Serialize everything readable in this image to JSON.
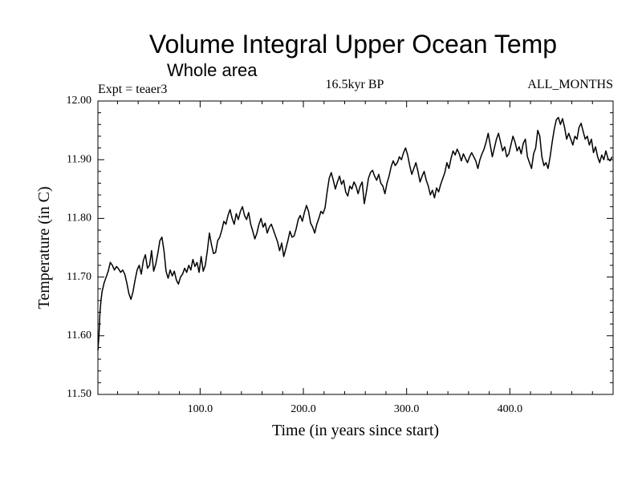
{
  "chart_data": {
    "type": "line",
    "title": "Volume Integral Upper Ocean Temp",
    "subtitle": "Whole area",
    "expt_label": "Expt = teaer3",
    "period_label": "16.5kyr BP",
    "months_label": "ALL_MONTHS",
    "xlabel": "Time (in years since start)",
    "ylabel": "Temperature (in C)",
    "xlim": [
      1,
      500
    ],
    "ylim": [
      11.5,
      12.0
    ],
    "x_ticks": [
      100,
      200,
      300,
      400
    ],
    "x_tick_labels": [
      "100.0",
      "200.0",
      "300.0",
      "400.0"
    ],
    "y_ticks": [
      11.5,
      11.6,
      11.7,
      11.8,
      11.9,
      12.0
    ],
    "y_tick_labels": [
      "11.50",
      "11.60",
      "11.70",
      "11.80",
      "11.90",
      "12.00"
    ],
    "grid": false,
    "series": [
      {
        "name": "Volume integral upper ocean temperature",
        "color": "#000000",
        "points": [
          [
            1,
            11.575
          ],
          [
            2,
            11.6
          ],
          [
            3,
            11.64
          ],
          [
            4,
            11.66
          ],
          [
            5,
            11.675
          ],
          [
            7,
            11.69
          ],
          [
            9,
            11.7
          ],
          [
            11,
            11.71
          ],
          [
            13,
            11.725
          ],
          [
            15,
            11.72
          ],
          [
            17,
            11.712
          ],
          [
            19,
            11.718
          ],
          [
            21,
            11.714
          ],
          [
            23,
            11.708
          ],
          [
            25,
            11.712
          ],
          [
            27,
            11.705
          ],
          [
            29,
            11.69
          ],
          [
            31,
            11.672
          ],
          [
            33,
            11.662
          ],
          [
            35,
            11.675
          ],
          [
            37,
            11.695
          ],
          [
            39,
            11.712
          ],
          [
            41,
            11.72
          ],
          [
            43,
            11.705
          ],
          [
            45,
            11.728
          ],
          [
            47,
            11.738
          ],
          [
            49,
            11.715
          ],
          [
            51,
            11.72
          ],
          [
            53,
            11.745
          ],
          [
            55,
            11.71
          ],
          [
            57,
            11.722
          ],
          [
            59,
            11.74
          ],
          [
            61,
            11.762
          ],
          [
            63,
            11.768
          ],
          [
            65,
            11.745
          ],
          [
            67,
            11.71
          ],
          [
            69,
            11.698
          ],
          [
            71,
            11.712
          ],
          [
            73,
            11.702
          ],
          [
            75,
            11.71
          ],
          [
            77,
            11.695
          ],
          [
            79,
            11.688
          ],
          [
            81,
            11.7
          ],
          [
            83,
            11.705
          ],
          [
            85,
            11.715
          ],
          [
            87,
            11.708
          ],
          [
            89,
            11.72
          ],
          [
            91,
            11.712
          ],
          [
            93,
            11.73
          ],
          [
            95,
            11.718
          ],
          [
            97,
            11.725
          ],
          [
            99,
            11.708
          ],
          [
            101,
            11.735
          ],
          [
            103,
            11.71
          ],
          [
            105,
            11.72
          ],
          [
            107,
            11.745
          ],
          [
            109,
            11.775
          ],
          [
            111,
            11.755
          ],
          [
            113,
            11.74
          ],
          [
            115,
            11.742
          ],
          [
            117,
            11.762
          ],
          [
            119,
            11.768
          ],
          [
            121,
            11.78
          ],
          [
            123,
            11.795
          ],
          [
            125,
            11.79
          ],
          [
            127,
            11.805
          ],
          [
            129,
            11.815
          ],
          [
            131,
            11.8
          ],
          [
            133,
            11.79
          ],
          [
            135,
            11.808
          ],
          [
            137,
            11.798
          ],
          [
            139,
            11.812
          ],
          [
            141,
            11.82
          ],
          [
            143,
            11.805
          ],
          [
            145,
            11.798
          ],
          [
            147,
            11.81
          ],
          [
            149,
            11.79
          ],
          [
            151,
            11.778
          ],
          [
            153,
            11.765
          ],
          [
            155,
            11.775
          ],
          [
            157,
            11.79
          ],
          [
            159,
            11.8
          ],
          [
            161,
            11.785
          ],
          [
            163,
            11.792
          ],
          [
            165,
            11.775
          ],
          [
            167,
            11.785
          ],
          [
            169,
            11.79
          ],
          [
            171,
            11.78
          ],
          [
            173,
            11.77
          ],
          [
            175,
            11.76
          ],
          [
            177,
            11.745
          ],
          [
            179,
            11.758
          ],
          [
            181,
            11.735
          ],
          [
            183,
            11.748
          ],
          [
            185,
            11.762
          ],
          [
            187,
            11.778
          ],
          [
            189,
            11.768
          ],
          [
            191,
            11.77
          ],
          [
            193,
            11.782
          ],
          [
            195,
            11.798
          ],
          [
            197,
            11.805
          ],
          [
            199,
            11.795
          ],
          [
            201,
            11.81
          ],
          [
            203,
            11.822
          ],
          [
            205,
            11.812
          ],
          [
            207,
            11.792
          ],
          [
            209,
            11.785
          ],
          [
            211,
            11.775
          ],
          [
            213,
            11.79
          ],
          [
            215,
            11.8
          ],
          [
            217,
            11.812
          ],
          [
            219,
            11.808
          ],
          [
            221,
            11.818
          ],
          [
            223,
            11.845
          ],
          [
            225,
            11.868
          ],
          [
            227,
            11.878
          ],
          [
            229,
            11.865
          ],
          [
            231,
            11.85
          ],
          [
            233,
            11.862
          ],
          [
            235,
            11.872
          ],
          [
            237,
            11.858
          ],
          [
            239,
            11.865
          ],
          [
            241,
            11.845
          ],
          [
            243,
            11.838
          ],
          [
            245,
            11.855
          ],
          [
            247,
            11.85
          ],
          [
            249,
            11.862
          ],
          [
            251,
            11.855
          ],
          [
            253,
            11.842
          ],
          [
            255,
            11.855
          ],
          [
            257,
            11.862
          ],
          [
            259,
            11.825
          ],
          [
            261,
            11.845
          ],
          [
            263,
            11.868
          ],
          [
            265,
            11.878
          ],
          [
            267,
            11.882
          ],
          [
            269,
            11.872
          ],
          [
            271,
            11.865
          ],
          [
            273,
            11.875
          ],
          [
            275,
            11.86
          ],
          [
            277,
            11.855
          ],
          [
            279,
            11.842
          ],
          [
            281,
            11.86
          ],
          [
            283,
            11.872
          ],
          [
            285,
            11.888
          ],
          [
            287,
            11.898
          ],
          [
            289,
            11.89
          ],
          [
            291,
            11.895
          ],
          [
            293,
            11.905
          ],
          [
            295,
            11.9
          ],
          [
            297,
            11.912
          ],
          [
            299,
            11.92
          ],
          [
            301,
            11.908
          ],
          [
            303,
            11.89
          ],
          [
            305,
            11.875
          ],
          [
            307,
            11.885
          ],
          [
            309,
            11.895
          ],
          [
            311,
            11.88
          ],
          [
            313,
            11.862
          ],
          [
            315,
            11.872
          ],
          [
            317,
            11.88
          ],
          [
            319,
            11.865
          ],
          [
            321,
            11.855
          ],
          [
            323,
            11.84
          ],
          [
            325,
            11.848
          ],
          [
            327,
            11.835
          ],
          [
            329,
            11.852
          ],
          [
            331,
            11.845
          ],
          [
            333,
            11.858
          ],
          [
            335,
            11.868
          ],
          [
            337,
            11.878
          ],
          [
            339,
            11.895
          ],
          [
            341,
            11.885
          ],
          [
            343,
            11.902
          ],
          [
            345,
            11.915
          ],
          [
            347,
            11.908
          ],
          [
            349,
            11.918
          ],
          [
            351,
            11.91
          ],
          [
            353,
            11.898
          ],
          [
            355,
            11.91
          ],
          [
            357,
            11.902
          ],
          [
            359,
            11.895
          ],
          [
            361,
            11.905
          ],
          [
            363,
            11.912
          ],
          [
            365,
            11.905
          ],
          [
            367,
            11.898
          ],
          [
            369,
            11.885
          ],
          [
            371,
            11.9
          ],
          [
            373,
            11.91
          ],
          [
            375,
            11.918
          ],
          [
            377,
            11.93
          ],
          [
            379,
            11.945
          ],
          [
            381,
            11.925
          ],
          [
            383,
            11.905
          ],
          [
            385,
            11.92
          ],
          [
            387,
            11.935
          ],
          [
            389,
            11.945
          ],
          [
            391,
            11.93
          ],
          [
            393,
            11.915
          ],
          [
            395,
            11.922
          ],
          [
            397,
            11.905
          ],
          [
            399,
            11.91
          ],
          [
            401,
            11.925
          ],
          [
            403,
            11.94
          ],
          [
            405,
            11.93
          ],
          [
            407,
            11.915
          ],
          [
            409,
            11.922
          ],
          [
            411,
            11.91
          ],
          [
            413,
            11.928
          ],
          [
            415,
            11.935
          ],
          [
            417,
            11.905
          ],
          [
            419,
            11.895
          ],
          [
            421,
            11.885
          ],
          [
            423,
            11.91
          ],
          [
            425,
            11.92
          ],
          [
            427,
            11.95
          ],
          [
            429,
            11.94
          ],
          [
            431,
            11.905
          ],
          [
            433,
            11.89
          ],
          [
            435,
            11.895
          ],
          [
            437,
            11.885
          ],
          [
            439,
            11.905
          ],
          [
            441,
            11.93
          ],
          [
            443,
            11.952
          ],
          [
            445,
            11.968
          ],
          [
            447,
            11.972
          ],
          [
            449,
            11.96
          ],
          [
            451,
            11.97
          ],
          [
            453,
            11.955
          ],
          [
            455,
            11.935
          ],
          [
            457,
            11.945
          ],
          [
            459,
            11.935
          ],
          [
            461,
            11.925
          ],
          [
            463,
            11.94
          ],
          [
            465,
            11.935
          ],
          [
            467,
            11.955
          ],
          [
            469,
            11.962
          ],
          [
            471,
            11.948
          ],
          [
            473,
            11.935
          ],
          [
            475,
            11.94
          ],
          [
            477,
            11.925
          ],
          [
            479,
            11.935
          ],
          [
            481,
            11.912
          ],
          [
            483,
            11.922
          ],
          [
            485,
            11.905
          ],
          [
            487,
            11.895
          ],
          [
            489,
            11.908
          ],
          [
            491,
            11.9
          ],
          [
            493,
            11.915
          ],
          [
            495,
            11.902
          ],
          [
            497,
            11.898
          ],
          [
            499,
            11.905
          ]
        ]
      }
    ]
  }
}
